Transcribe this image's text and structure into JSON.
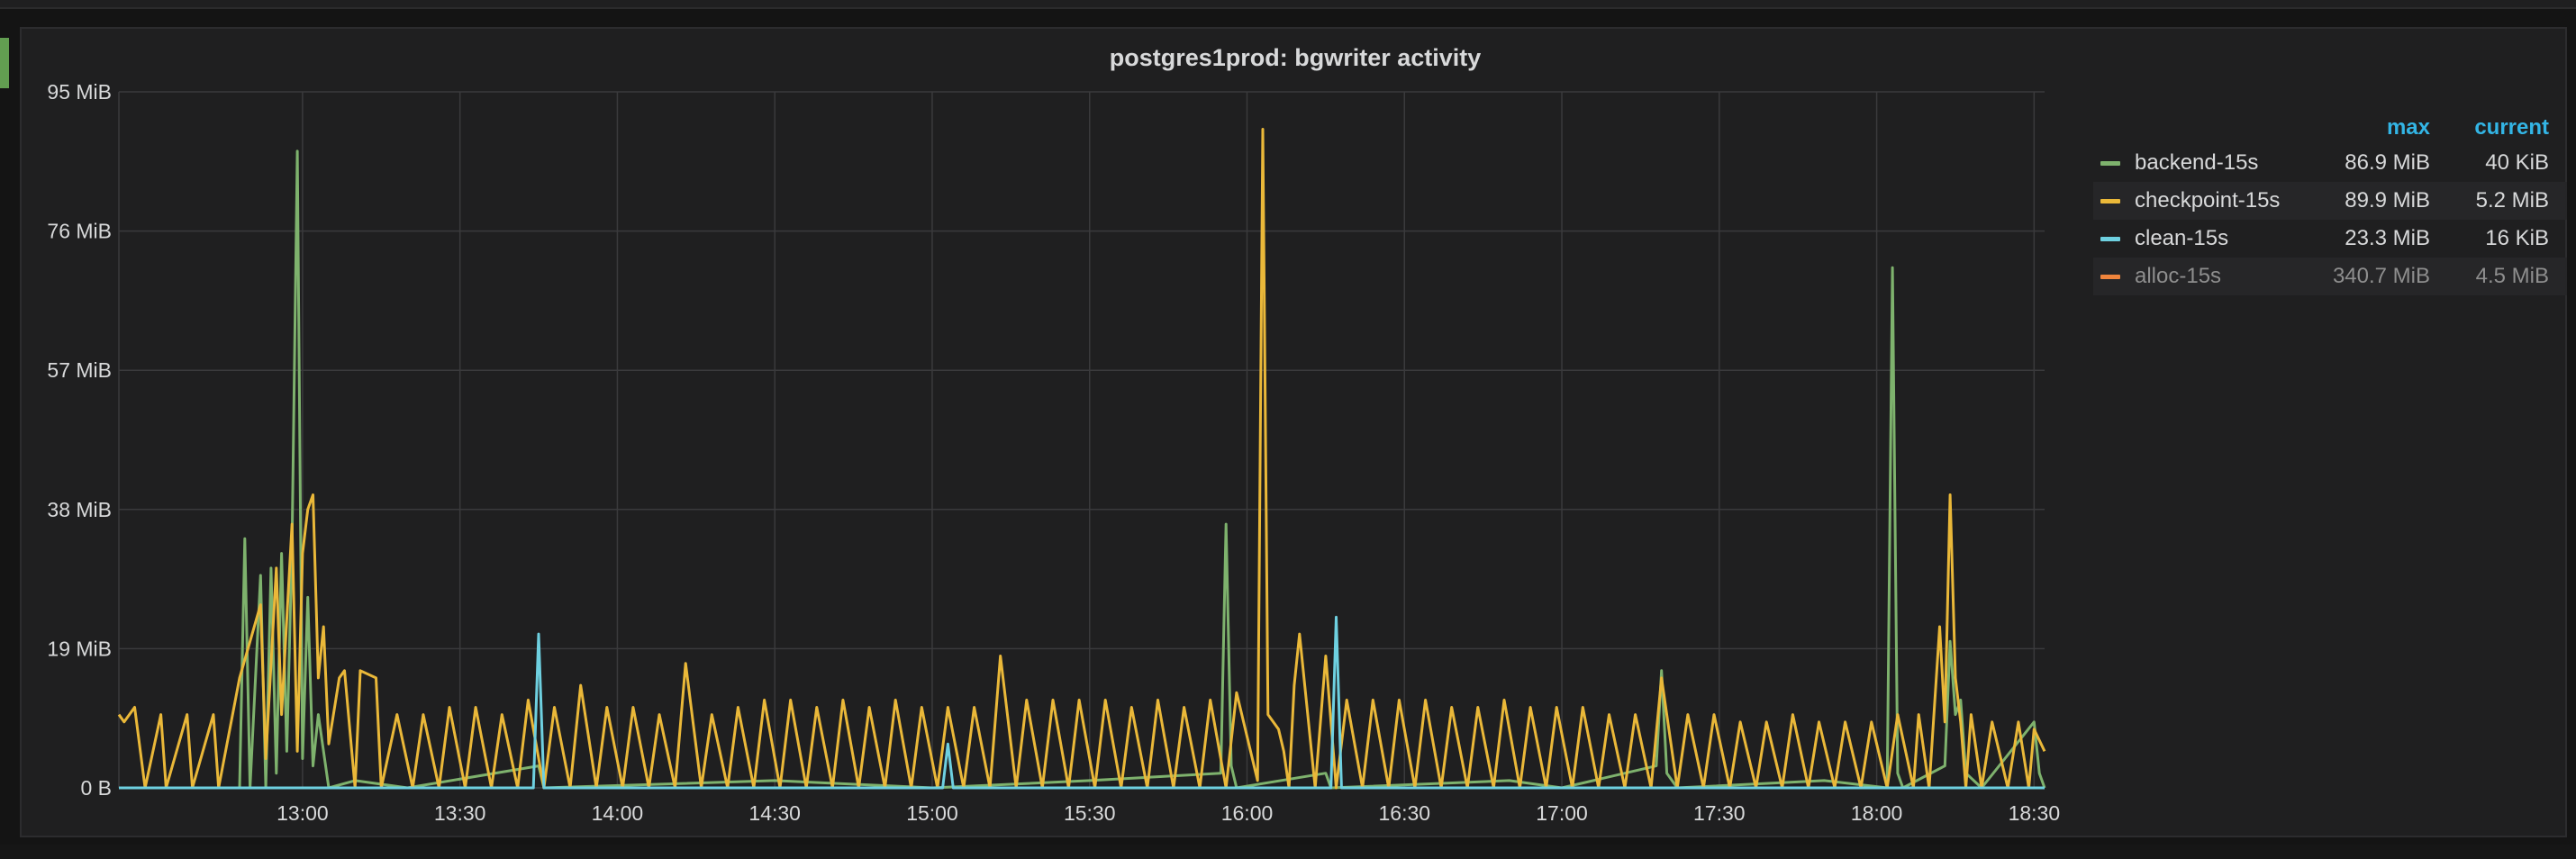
{
  "panel": {
    "title": "postgres1prod: bgwriter activity"
  },
  "chart_data": {
    "type": "line",
    "title": "postgres1prod: bgwriter activity",
    "y_ticks": [
      "0 B",
      "19 MiB",
      "38 MiB",
      "57 MiB",
      "76 MiB",
      "95 MiB"
    ],
    "ylim": [
      0,
      95
    ],
    "yunit": "MiB",
    "x_ticks": [
      "13:00",
      "13:30",
      "14:00",
      "14:30",
      "15:00",
      "15:30",
      "16:00",
      "16:30",
      "17:00",
      "17:30",
      "18:00",
      "18:30"
    ],
    "xlim": [
      "12:25",
      "18:32"
    ],
    "grid": true,
    "legend_position": "right",
    "legend_columns": [
      "max",
      "current"
    ],
    "series": [
      {
        "name": "backend-15s",
        "color": "#7eb26d",
        "max": "86.9 MiB",
        "current": "40 KiB",
        "points": [
          [
            "12:25",
            0
          ],
          [
            "12:48",
            0
          ],
          [
            "12:49",
            34
          ],
          [
            "12:50",
            0
          ],
          [
            "12:52",
            29
          ],
          [
            "12:53",
            0
          ],
          [
            "12:54",
            30
          ],
          [
            "12:55",
            2
          ],
          [
            "12:56",
            32
          ],
          [
            "12:57",
            5
          ],
          [
            "12:58",
            33
          ],
          [
            "12:59",
            86.9
          ],
          [
            "13:00",
            4
          ],
          [
            "13:01",
            26
          ],
          [
            "13:02",
            3
          ],
          [
            "13:03",
            10
          ],
          [
            "13:05",
            0
          ],
          [
            "13:10",
            1
          ],
          [
            "13:20",
            0
          ],
          [
            "13:45",
            3
          ],
          [
            "13:46",
            0
          ],
          [
            "14:30",
            1
          ],
          [
            "15:00",
            0
          ],
          [
            "15:30",
            1
          ],
          [
            "15:55",
            2
          ],
          [
            "15:56",
            36
          ],
          [
            "15:57",
            3
          ],
          [
            "15:58",
            0
          ],
          [
            "16:15",
            2
          ],
          [
            "16:16",
            0
          ],
          [
            "16:50",
            1
          ],
          [
            "17:00",
            0
          ],
          [
            "17:18",
            3
          ],
          [
            "17:19",
            16
          ],
          [
            "17:20",
            2
          ],
          [
            "17:22",
            0
          ],
          [
            "17:50",
            1
          ],
          [
            "18:02",
            0
          ],
          [
            "18:03",
            71
          ],
          [
            "18:04",
            2
          ],
          [
            "18:05",
            0
          ],
          [
            "18:13",
            3
          ],
          [
            "18:14",
            20
          ],
          [
            "18:15",
            10
          ],
          [
            "18:16",
            12
          ],
          [
            "18:17",
            2
          ],
          [
            "18:20",
            0
          ],
          [
            "18:30",
            9
          ],
          [
            "18:31",
            2
          ],
          [
            "18:32",
            0
          ]
        ]
      },
      {
        "name": "checkpoint-15s",
        "color": "#eab839",
        "max": "89.9 MiB",
        "current": "5.2 MiB",
        "points": [
          [
            "12:25",
            10
          ],
          [
            "12:26",
            9
          ],
          [
            "12:28",
            11
          ],
          [
            "12:30",
            0
          ],
          [
            "12:33",
            10
          ],
          [
            "12:34",
            0
          ],
          [
            "12:38",
            10
          ],
          [
            "12:39",
            0
          ],
          [
            "12:43",
            10
          ],
          [
            "12:44",
            0
          ],
          [
            "12:48",
            15
          ],
          [
            "12:52",
            25
          ],
          [
            "12:53",
            4
          ],
          [
            "12:55",
            30
          ],
          [
            "12:56",
            10
          ],
          [
            "12:58",
            36
          ],
          [
            "12:59",
            5
          ],
          [
            "13:00",
            32
          ],
          [
            "13:01",
            38
          ],
          [
            "13:02",
            40
          ],
          [
            "13:03",
            15
          ],
          [
            "13:04",
            22
          ],
          [
            "13:05",
            6
          ],
          [
            "13:07",
            15
          ],
          [
            "13:08",
            16
          ],
          [
            "13:10",
            0
          ],
          [
            "13:11",
            16
          ],
          [
            "13:14",
            15
          ],
          [
            "13:15",
            0
          ],
          [
            "13:18",
            10
          ],
          [
            "13:21",
            0
          ],
          [
            "13:23",
            10
          ],
          [
            "13:26",
            0
          ],
          [
            "13:28",
            11
          ],
          [
            "13:31",
            0
          ],
          [
            "13:33",
            11
          ],
          [
            "13:36",
            0
          ],
          [
            "13:38",
            10
          ],
          [
            "13:41",
            0
          ],
          [
            "13:43",
            12
          ],
          [
            "13:46",
            0
          ],
          [
            "13:48",
            11
          ],
          [
            "13:51",
            0
          ],
          [
            "13:53",
            14
          ],
          [
            "13:56",
            0
          ],
          [
            "13:58",
            11
          ],
          [
            "14:01",
            0
          ],
          [
            "14:03",
            11
          ],
          [
            "14:06",
            0
          ],
          [
            "14:08",
            10
          ],
          [
            "14:11",
            0
          ],
          [
            "14:13",
            17
          ],
          [
            "14:16",
            0
          ],
          [
            "14:18",
            10
          ],
          [
            "14:21",
            0
          ],
          [
            "14:23",
            11
          ],
          [
            "14:26",
            0
          ],
          [
            "14:28",
            12
          ],
          [
            "14:31",
            0
          ],
          [
            "14:33",
            12
          ],
          [
            "14:36",
            0
          ],
          [
            "14:38",
            11
          ],
          [
            "14:41",
            0
          ],
          [
            "14:43",
            12
          ],
          [
            "14:46",
            0
          ],
          [
            "14:48",
            11
          ],
          [
            "14:51",
            0
          ],
          [
            "14:53",
            12
          ],
          [
            "14:56",
            0
          ],
          [
            "14:58",
            11
          ],
          [
            "15:01",
            0
          ],
          [
            "15:03",
            11
          ],
          [
            "15:06",
            0
          ],
          [
            "15:08",
            11
          ],
          [
            "15:11",
            0
          ],
          [
            "15:13",
            18
          ],
          [
            "15:16",
            0
          ],
          [
            "15:18",
            12
          ],
          [
            "15:21",
            0
          ],
          [
            "15:23",
            12
          ],
          [
            "15:26",
            0
          ],
          [
            "15:28",
            12
          ],
          [
            "15:31",
            0
          ],
          [
            "15:33",
            12
          ],
          [
            "15:36",
            0
          ],
          [
            "15:38",
            11
          ],
          [
            "15:41",
            0
          ],
          [
            "15:43",
            12
          ],
          [
            "15:46",
            0
          ],
          [
            "15:48",
            11
          ],
          [
            "15:51",
            0
          ],
          [
            "15:53",
            12
          ],
          [
            "15:56",
            0
          ],
          [
            "15:58",
            13
          ],
          [
            "16:02",
            1
          ],
          [
            "16:03",
            89.9
          ],
          [
            "16:04",
            10
          ],
          [
            "16:06",
            8
          ],
          [
            "16:07",
            5
          ],
          [
            "16:08",
            0
          ],
          [
            "16:09",
            14
          ],
          [
            "16:10",
            21
          ],
          [
            "16:13",
            0
          ],
          [
            "16:15",
            18
          ],
          [
            "16:17",
            0
          ],
          [
            "16:19",
            12
          ],
          [
            "16:22",
            0
          ],
          [
            "16:24",
            12
          ],
          [
            "16:27",
            0
          ],
          [
            "16:29",
            12
          ],
          [
            "16:32",
            0
          ],
          [
            "16:34",
            12
          ],
          [
            "16:37",
            0
          ],
          [
            "16:39",
            11
          ],
          [
            "16:42",
            0
          ],
          [
            "16:44",
            11
          ],
          [
            "16:47",
            0
          ],
          [
            "16:49",
            12
          ],
          [
            "16:52",
            0
          ],
          [
            "16:54",
            11
          ],
          [
            "16:57",
            0
          ],
          [
            "16:59",
            11
          ],
          [
            "17:02",
            0
          ],
          [
            "17:04",
            11
          ],
          [
            "17:07",
            0
          ],
          [
            "17:09",
            10
          ],
          [
            "17:12",
            0
          ],
          [
            "17:14",
            10
          ],
          [
            "17:17",
            0
          ],
          [
            "17:19",
            15
          ],
          [
            "17:22",
            0
          ],
          [
            "17:24",
            10
          ],
          [
            "17:27",
            0
          ],
          [
            "17:29",
            10
          ],
          [
            "17:32",
            0
          ],
          [
            "17:34",
            9
          ],
          [
            "17:37",
            0
          ],
          [
            "17:39",
            9
          ],
          [
            "17:42",
            0
          ],
          [
            "17:44",
            10
          ],
          [
            "17:47",
            0
          ],
          [
            "17:49",
            9
          ],
          [
            "17:52",
            0
          ],
          [
            "17:54",
            9
          ],
          [
            "17:57",
            0
          ],
          [
            "17:59",
            9
          ],
          [
            "18:02",
            0
          ],
          [
            "18:04",
            10
          ],
          [
            "18:07",
            0
          ],
          [
            "18:08",
            10
          ],
          [
            "18:10",
            0
          ],
          [
            "18:12",
            22
          ],
          [
            "18:13",
            9
          ],
          [
            "18:14",
            40
          ],
          [
            "18:15",
            15
          ],
          [
            "18:16",
            9
          ],
          [
            "18:17",
            0
          ],
          [
            "18:18",
            10
          ],
          [
            "18:20",
            0
          ],
          [
            "18:22",
            9
          ],
          [
            "18:25",
            0
          ],
          [
            "18:27",
            9
          ],
          [
            "18:29",
            0
          ],
          [
            "18:30",
            8
          ],
          [
            "18:32",
            5
          ]
        ]
      },
      {
        "name": "clean-15s",
        "color": "#6ed0e0",
        "max": "23.3 MiB",
        "current": "16 KiB",
        "points": [
          [
            "12:25",
            0
          ],
          [
            "13:44",
            0
          ],
          [
            "13:45",
            21
          ],
          [
            "13:46",
            0
          ],
          [
            "15:02",
            0
          ],
          [
            "15:03",
            6
          ],
          [
            "15:04",
            0
          ],
          [
            "16:16",
            0
          ],
          [
            "16:17",
            23.3
          ],
          [
            "16:18",
            0
          ],
          [
            "18:32",
            0
          ]
        ]
      },
      {
        "name": "alloc-15s",
        "color": "#ef843c",
        "max": "340.7 MiB",
        "current": "4.5 MiB",
        "hidden": true,
        "points": []
      }
    ]
  }
}
